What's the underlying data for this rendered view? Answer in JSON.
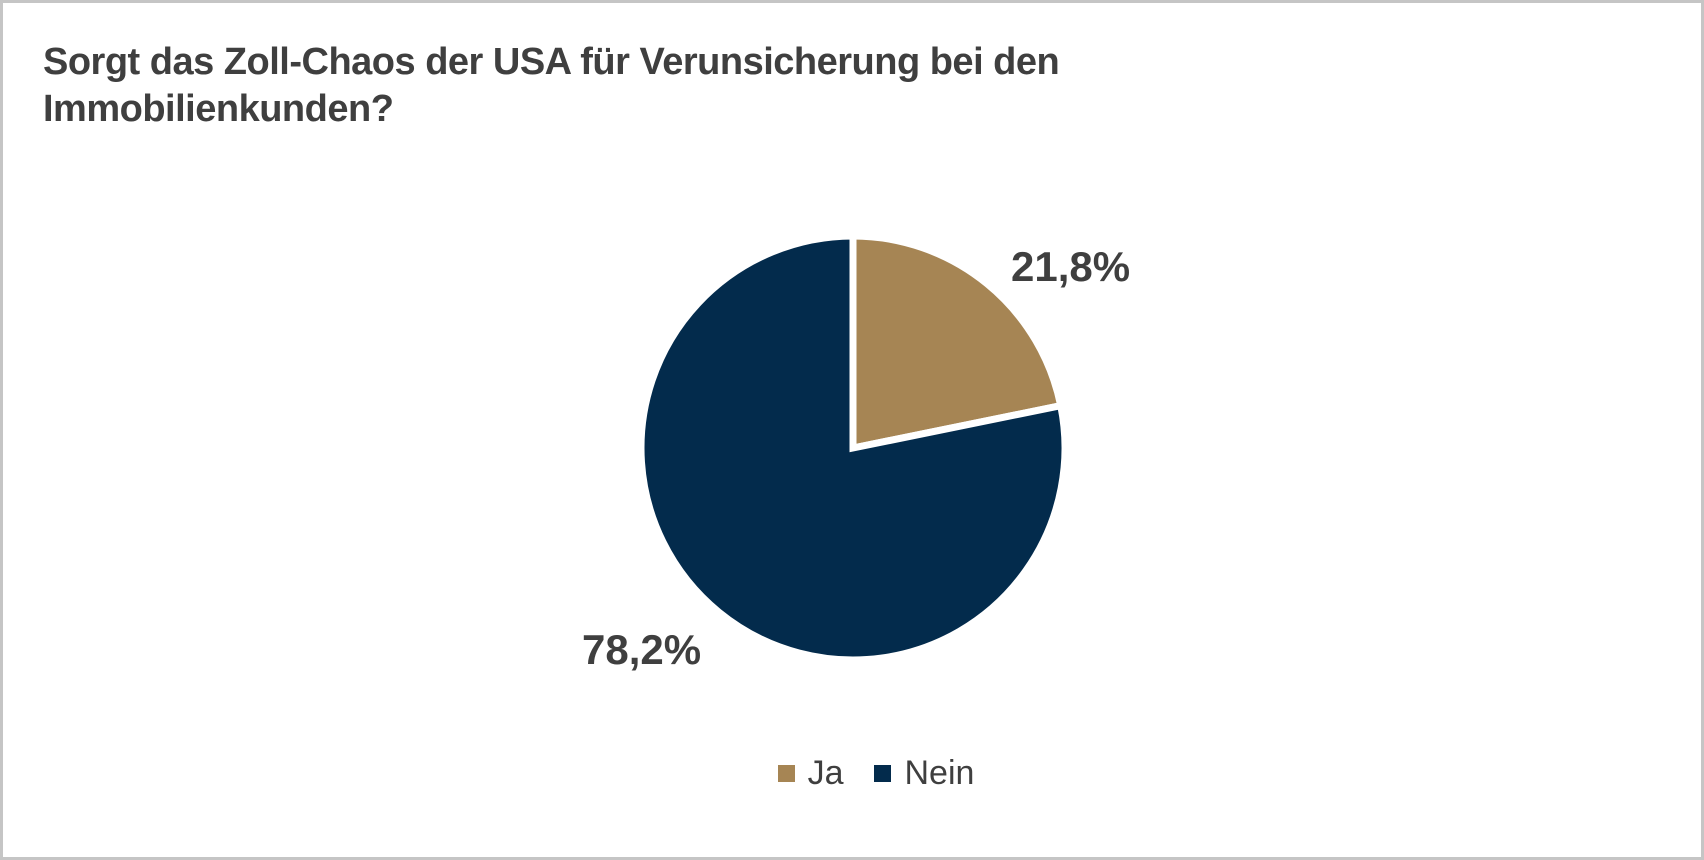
{
  "window": {
    "background": "#FFFFFF",
    "border_color": "#C5C5C5"
  },
  "chart_data": {
    "type": "pie",
    "title": "Sorgt das Zoll-Chaos der USA für Verunsicherung bei den Immobilienkunden?",
    "title_lines": [
      "Sorgt das Zoll-Chaos der USA für Verunsicherung bei den",
      "Immobilienkunden?"
    ],
    "slices": [
      {
        "name": "Ja",
        "value": 21.8,
        "label": "21,8%",
        "color": "#A68554"
      },
      {
        "name": "Nein",
        "value": 78.2,
        "label": "78,2%",
        "color": "#032B4C"
      }
    ],
    "start_angle_deg": 0,
    "slice_separator_color": "#FFFFFF",
    "label_color": "#3F3F3F",
    "title_color": "#3F3F3F",
    "legend_position": "bottom",
    "legend_entries": [
      "Ja",
      "Nein"
    ]
  }
}
